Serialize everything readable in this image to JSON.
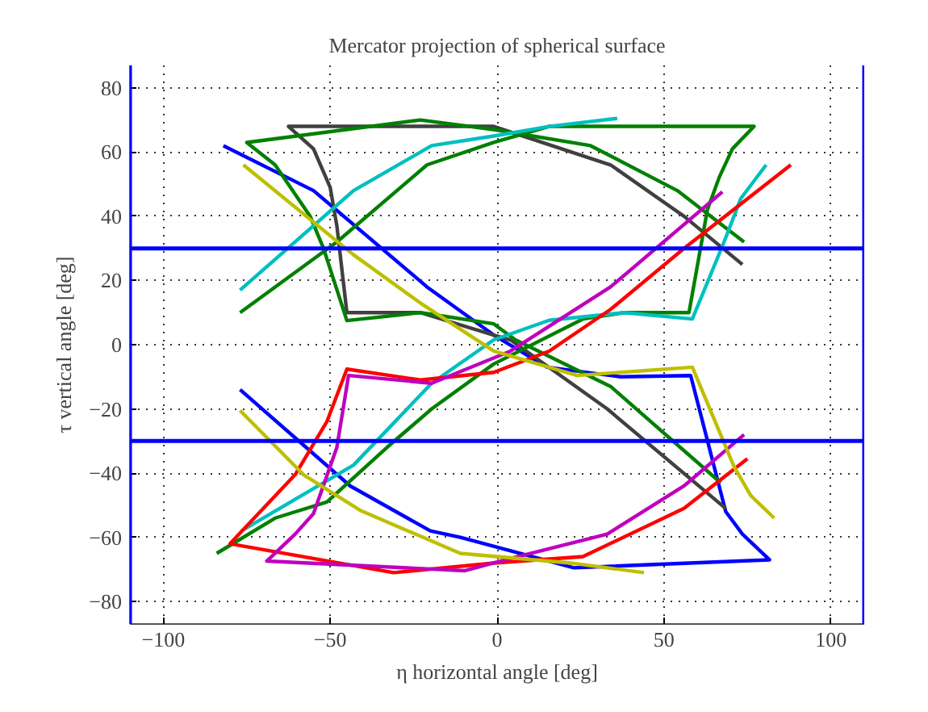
{
  "chart_data": {
    "type": "line",
    "title": "Mercator projection of spherical surface",
    "xlabel": "η horizontal angle [deg]",
    "ylabel": "τ vertical angle [deg]",
    "xlim": [
      -110,
      110
    ],
    "ylim": [
      -87,
      87
    ],
    "xticks": [
      -100,
      -50,
      0,
      50,
      100
    ],
    "yticks": [
      -80,
      -60,
      -40,
      -20,
      0,
      20,
      40,
      60,
      80
    ],
    "grid": true,
    "ref_lines": [
      {
        "axis": "y",
        "value": 30,
        "color": "#0000ff"
      },
      {
        "axis": "y",
        "value": -30,
        "color": "#0000ff"
      },
      {
        "axis": "x",
        "value": -110,
        "color": "#0000ff"
      },
      {
        "axis": "x",
        "value": 110,
        "color": "#0000ff"
      }
    ],
    "line_style": "solid",
    "marker": "none",
    "series": [
      {
        "color": "#0000ff",
        "x": [
          -82,
          -55,
          -21,
          -1,
          15,
          37,
          58,
          68.5,
          73.5,
          81.6,
          23,
          -11,
          -20,
          -44,
          -77
        ],
        "values": [
          62,
          48,
          18,
          3,
          -7,
          -10,
          -9.6,
          -52,
          -59,
          -67,
          -69.5,
          -60,
          -58,
          -44,
          -14
        ]
      },
      {
        "color": "#404040",
        "x": [
          73.5,
          56,
          34,
          -1,
          -62.5,
          -55,
          -50,
          -48,
          -45,
          -23,
          -1,
          4,
          33,
          68.5
        ],
        "values": [
          25,
          40,
          56,
          68,
          68,
          61,
          49,
          37,
          10,
          10,
          3,
          1.5,
          -20,
          -51
        ]
      },
      {
        "color": "#008000",
        "x": [
          74,
          54,
          28,
          -1,
          -23,
          -75,
          -66.5,
          -56,
          -52,
          -45,
          -23,
          -1,
          5.5,
          34,
          67
        ],
        "values": [
          32,
          48,
          62,
          67,
          70,
          63,
          56,
          40,
          30,
          7.5,
          10,
          6.5,
          1.5,
          -13,
          -43
        ]
      },
      {
        "color": "#008000",
        "x": [
          -77,
          -48,
          -21,
          -1,
          15.6,
          77,
          70.5,
          66.5,
          63,
          57.5,
          38,
          25.7,
          -1,
          -19.6,
          -33,
          -51,
          -66.5,
          -84
        ],
        "values": [
          10,
          32,
          56,
          63,
          68,
          68,
          61,
          52,
          42,
          10,
          10,
          8,
          -6,
          -20,
          -32,
          -49,
          -54,
          -65
        ]
      },
      {
        "color": "#00bfbf",
        "x": [
          -77,
          -43,
          -19.6,
          -1,
          15.6,
          36
        ],
        "values": [
          17,
          48,
          62,
          65,
          68,
          70.5
        ]
      },
      {
        "color": "#00bfbf",
        "x": [
          80.6,
          73,
          68,
          58.5,
          38,
          15.6,
          -1,
          -19.6,
          -43,
          -76.6
        ],
        "values": [
          56,
          45.5,
          32,
          8,
          10,
          7.6,
          1.5,
          -12,
          -37.5,
          -58
        ]
      },
      {
        "color": "#ff0000",
        "x": [
          88,
          56,
          34,
          15.6,
          -1,
          -23,
          -45,
          -51,
          -60.5,
          -80,
          -31,
          -1,
          25.7,
          56,
          75
        ],
        "values": [
          56,
          30,
          11,
          -2,
          -8.6,
          -11,
          -7.6,
          -24,
          -40.5,
          -62,
          -71,
          -68,
          -66,
          -51,
          -35.5
        ]
      },
      {
        "color": "#bf00bf",
        "x": [
          67.5,
          34,
          4,
          -19.6,
          -44.5,
          -48,
          -55,
          -60.5,
          -69,
          -9.6,
          2.5,
          33,
          56,
          74
        ],
        "values": [
          47.6,
          18,
          -2,
          -12,
          -9.6,
          -32,
          -52.6,
          -59,
          -67.4,
          -70.4,
          -67,
          -59,
          -44,
          -28
        ]
      },
      {
        "color": "#bfbf00",
        "x": [
          -76,
          -43,
          -23,
          -1,
          24,
          58.5,
          71,
          76,
          83
        ],
        "values": [
          56,
          28,
          13,
          -2,
          -9.6,
          -7,
          -38,
          -47,
          -54
        ]
      },
      {
        "color": "#bfbf00",
        "x": [
          -77,
          -58,
          -41,
          -11,
          22,
          44
        ],
        "values": [
          -20.5,
          -40.5,
          -51.6,
          -65,
          -68,
          -71
        ]
      }
    ]
  }
}
